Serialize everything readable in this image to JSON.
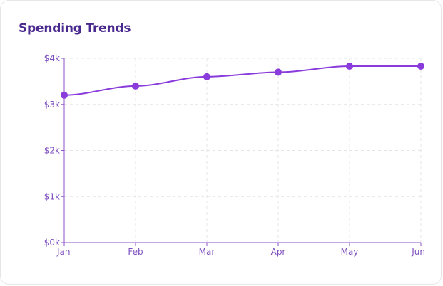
{
  "card": {
    "title": "Spending Trends"
  },
  "colors": {
    "title": "#4b2a8f",
    "series": "#8a3bdc",
    "axis": "#8b52c9",
    "tick_text": "#7e4fbf",
    "grid": "#e4e4e8"
  },
  "chart_data": {
    "type": "line",
    "title": "Spending Trends",
    "xlabel": "",
    "ylabel": "",
    "categories": [
      "Jan",
      "Feb",
      "Mar",
      "Apr",
      "May",
      "Jun"
    ],
    "series": [
      {
        "values": [
          3200,
          3400,
          3600,
          3700,
          3830,
          3830
        ]
      }
    ],
    "ylim": [
      0,
      4000
    ],
    "yticks": [
      0,
      1000,
      2000,
      3000,
      4000
    ],
    "ytick_labels": [
      "$0k",
      "$1k",
      "$2k",
      "$3k",
      "$4k"
    ],
    "grid": true,
    "grid_style": "dashed",
    "legend": "none"
  }
}
